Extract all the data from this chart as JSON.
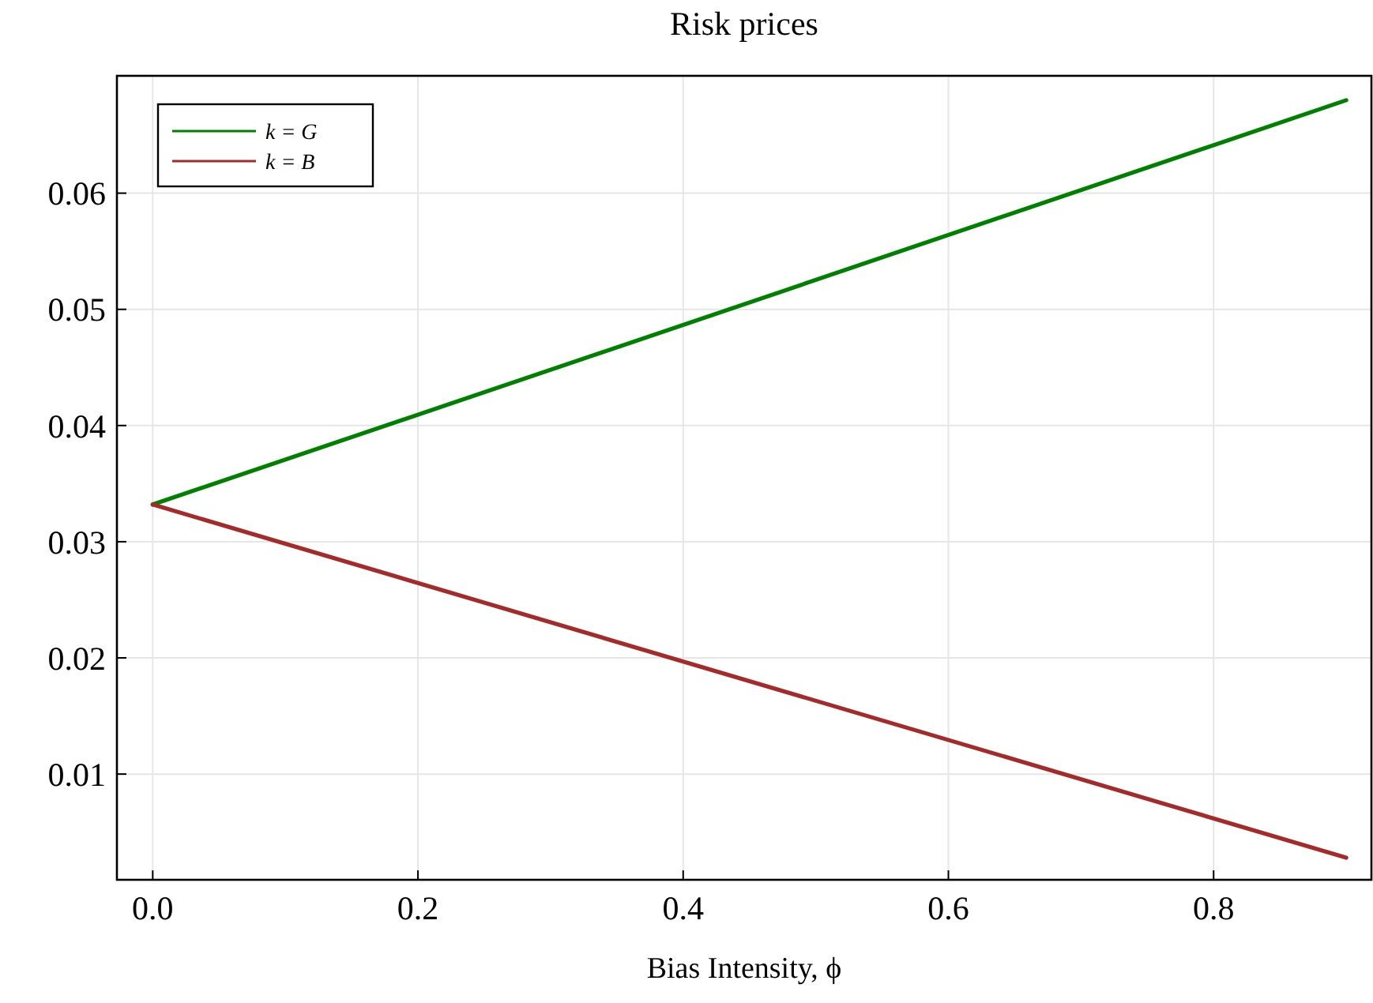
{
  "chart_data": {
    "type": "line",
    "title": "Risk prices",
    "xlabel": "Bias Intensity, ϕ",
    "x": [
      0,
      0.9
    ],
    "series": [
      {
        "name": "k = G",
        "color": "#008000",
        "values": [
          0.0332,
          0.068
        ]
      },
      {
        "name": "k = B",
        "color": "#a52a2a",
        "values": [
          0.0332,
          0.0028
        ]
      }
    ],
    "xlim": [
      -0.027,
      0.919
    ],
    "ylim": [
      0.0009,
      0.0701
    ],
    "xticks": [
      {
        "value": 0,
        "label": "0.0"
      },
      0.2,
      0.4,
      0.6,
      0.8
    ],
    "yticks": [
      0.01,
      0.02,
      0.03,
      0.04,
      0.05,
      0.06
    ],
    "grid": true,
    "legend": "top left",
    "marker": "none",
    "line_style": "solid"
  }
}
